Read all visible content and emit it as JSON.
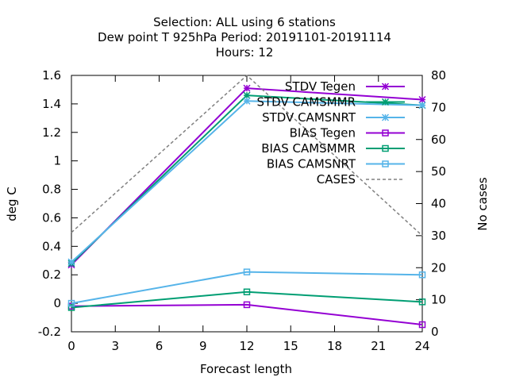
{
  "chart_data": {
    "type": "line",
    "title_lines": [
      "Selection: ALL using     6 stations",
      "Dew point T 925hPa   Period: 20191101-20191114",
      "Hours:  12"
    ],
    "xlabel": "Forecast length",
    "ylabel": "deg C",
    "y2label": "No cases",
    "x": [
      0,
      12,
      24
    ],
    "xticks": [
      0,
      3,
      6,
      9,
      12,
      15,
      18,
      21,
      24
    ],
    "xlim": [
      0,
      24
    ],
    "ylim": [
      -0.2,
      1.6
    ],
    "yticks": [
      -0.2,
      0,
      0.2,
      0.4,
      0.6,
      0.8,
      1,
      1.2,
      1.4,
      1.6
    ],
    "ytick_labels": [
      "-0.2",
      "0",
      "0.2",
      "0.4",
      "0.6",
      "0.8",
      "1",
      "1.2",
      "1.4",
      "1.6"
    ],
    "y2lim": [
      0,
      80
    ],
    "y2ticks": [
      0,
      10,
      20,
      30,
      40,
      50,
      60,
      70,
      80
    ],
    "grid": false,
    "legend_position": "top-right",
    "series": [
      {
        "name": "STDV Tegen",
        "axis": "y",
        "marker": "star",
        "dash": false,
        "color": "#9400d3",
        "values": [
          0.27,
          1.51,
          1.43
        ]
      },
      {
        "name": "STDV CAMSMMR",
        "axis": "y",
        "marker": "star",
        "dash": false,
        "color": "#009e73",
        "values": [
          0.28,
          1.46,
          1.39
        ]
      },
      {
        "name": "STDV CAMSNRT",
        "axis": "y",
        "marker": "star",
        "dash": false,
        "color": "#56b4e9",
        "values": [
          0.29,
          1.42,
          1.39
        ]
      },
      {
        "name": "BIAS Tegen",
        "axis": "y",
        "marker": "square",
        "dash": false,
        "color": "#9400d3",
        "values": [
          -0.02,
          -0.01,
          -0.15
        ]
      },
      {
        "name": "BIAS CAMSMMR",
        "axis": "y",
        "marker": "square",
        "dash": false,
        "color": "#009e73",
        "values": [
          -0.03,
          0.08,
          0.01
        ]
      },
      {
        "name": "BIAS CAMSNRT",
        "axis": "y",
        "marker": "square",
        "dash": false,
        "color": "#56b4e9",
        "values": [
          0.0,
          0.22,
          0.2
        ]
      },
      {
        "name": "CASES",
        "axis": "y2",
        "marker": "none",
        "dash": true,
        "color": "#808080",
        "values": [
          31,
          80,
          30
        ]
      }
    ]
  }
}
